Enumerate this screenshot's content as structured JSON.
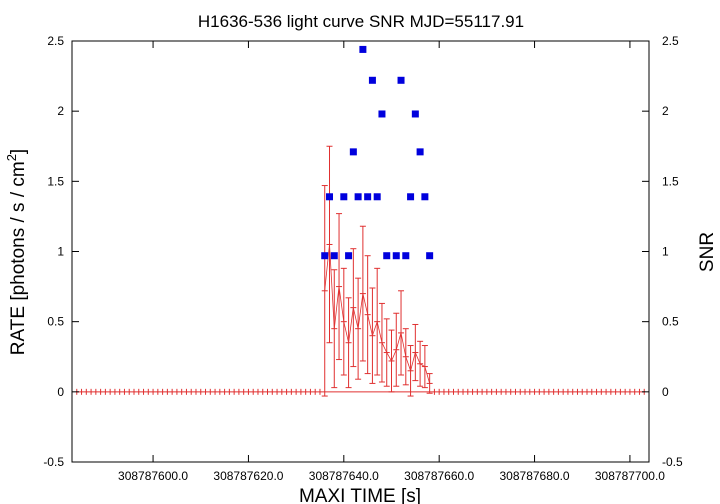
{
  "chart_data": {
    "type": "scatter",
    "title": "H1636-536 light curve  SNR MJD=55117.91",
    "xlabel": "MAXI TIME [s]",
    "ylabel_main": "RATE [photons / s / cm",
    "ylabel_sup": "2",
    "ylabel_close": "]",
    "y2label": "SNR",
    "xlim": [
      308787583.0,
      308787704.0
    ],
    "ylim": [
      -0.5,
      2.5
    ],
    "y2lim": [
      -0.5,
      2.5
    ],
    "x_ticks": [
      {
        "value": 308787600.0,
        "label": "308787600.0"
      },
      {
        "value": 308787620.0,
        "label": "308787620.0"
      },
      {
        "value": 308787640.0,
        "label": "308787640.0"
      },
      {
        "value": 308787660.0,
        "label": "308787660.0"
      },
      {
        "value": 308787680.0,
        "label": "308787680.0"
      },
      {
        "value": 308787700.0,
        "label": "308787700.0"
      }
    ],
    "y_ticks": [
      {
        "value": -0.5,
        "label": "-0.5"
      },
      {
        "value": 0,
        "label": "0"
      },
      {
        "value": 0.5,
        "label": "0.5"
      },
      {
        "value": 1,
        "label": "1"
      },
      {
        "value": 1.5,
        "label": "1.5"
      },
      {
        "value": 2,
        "label": "2"
      },
      {
        "value": 2.5,
        "label": "2.5"
      }
    ],
    "y2_ticks": [
      {
        "value": -0.5,
        "label": "-0.5"
      },
      {
        "value": 0,
        "label": "0"
      },
      {
        "value": 0.5,
        "label": "0.5"
      },
      {
        "value": 1,
        "label": "1"
      },
      {
        "value": 1.5,
        "label": "1.5"
      },
      {
        "value": 2,
        "label": "2"
      },
      {
        "value": 2.5,
        "label": "2.5"
      }
    ],
    "grid": false,
    "colors": {
      "rate": "#e03030",
      "snr": "#0000dd",
      "axis": "#000000"
    },
    "series": [
      {
        "kind": "rate_errorbars",
        "zero_range": [
          308787584.0,
          308787703.0
        ],
        "zero_step": 1.0,
        "points": [
          {
            "x": 308787636.0,
            "y": 0.72,
            "err": 0.75
          },
          {
            "x": 308787637.0,
            "y": 1.05,
            "err": 0.7
          },
          {
            "x": 308787638.0,
            "y": 0.45,
            "err": 0.42
          },
          {
            "x": 308787639.0,
            "y": 0.75,
            "err": 0.52
          },
          {
            "x": 308787640.0,
            "y": 0.5,
            "err": 0.38
          },
          {
            "x": 308787641.0,
            "y": 0.35,
            "err": 0.32
          },
          {
            "x": 308787642.0,
            "y": 0.6,
            "err": 0.42
          },
          {
            "x": 308787643.0,
            "y": 0.45,
            "err": 0.36
          },
          {
            "x": 308787644.0,
            "y": 0.7,
            "err": 0.48
          },
          {
            "x": 308787645.0,
            "y": 0.55,
            "err": 0.42
          },
          {
            "x": 308787646.0,
            "y": 0.4,
            "err": 0.34
          },
          {
            "x": 308787647.0,
            "y": 0.5,
            "err": 0.38
          },
          {
            "x": 308787648.0,
            "y": 0.35,
            "err": 0.28
          },
          {
            "x": 308787649.0,
            "y": 0.28,
            "err": 0.24
          },
          {
            "x": 308787650.0,
            "y": 0.22,
            "err": 0.22
          },
          {
            "x": 308787651.0,
            "y": 0.3,
            "err": 0.26
          },
          {
            "x": 308787652.0,
            "y": 0.42,
            "err": 0.3
          },
          {
            "x": 308787653.0,
            "y": 0.25,
            "err": 0.2
          },
          {
            "x": 308787654.0,
            "y": 0.15,
            "err": 0.18
          },
          {
            "x": 308787655.0,
            "y": 0.28,
            "err": 0.2
          },
          {
            "x": 308787656.0,
            "y": 0.2,
            "err": 0.16
          },
          {
            "x": 308787657.0,
            "y": 0.18,
            "err": 0.15
          },
          {
            "x": 308787658.0,
            "y": 0.06,
            "err": 0.07
          }
        ]
      },
      {
        "kind": "snr_squares",
        "points": [
          {
            "x": 308787636.0,
            "y": 0.97
          },
          {
            "x": 308787637.0,
            "y": 1.39
          },
          {
            "x": 308787638.0,
            "y": 0.97
          },
          {
            "x": 308787640.0,
            "y": 1.39
          },
          {
            "x": 308787641.0,
            "y": 0.97
          },
          {
            "x": 308787642.0,
            "y": 1.71
          },
          {
            "x": 308787643.0,
            "y": 1.39
          },
          {
            "x": 308787644.0,
            "y": 2.44
          },
          {
            "x": 308787645.0,
            "y": 1.39
          },
          {
            "x": 308787646.0,
            "y": 2.22
          },
          {
            "x": 308787647.0,
            "y": 1.39
          },
          {
            "x": 308787648.0,
            "y": 1.98
          },
          {
            "x": 308787649.0,
            "y": 0.97
          },
          {
            "x": 308787651.0,
            "y": 0.97
          },
          {
            "x": 308787652.0,
            "y": 2.22
          },
          {
            "x": 308787653.0,
            "y": 0.97
          },
          {
            "x": 308787654.0,
            "y": 1.39
          },
          {
            "x": 308787655.0,
            "y": 1.98
          },
          {
            "x": 308787656.0,
            "y": 1.71
          },
          {
            "x": 308787657.0,
            "y": 1.39
          },
          {
            "x": 308787658.0,
            "y": 0.97
          }
        ]
      }
    ]
  }
}
